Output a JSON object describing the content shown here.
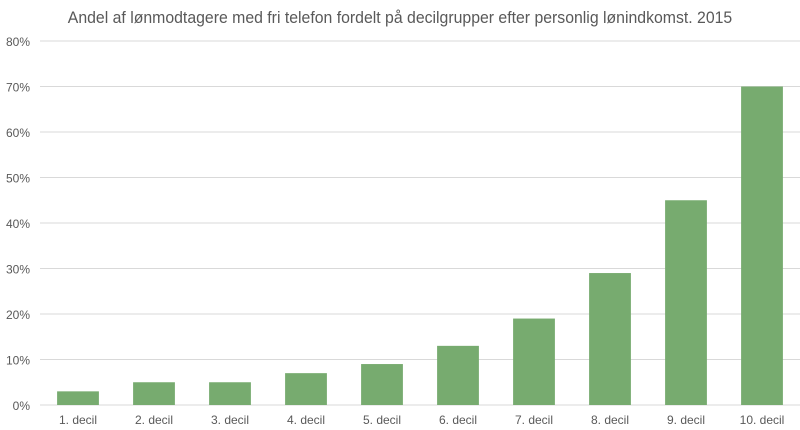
{
  "chart_data": {
    "type": "bar",
    "title": "Andel af lønmodtagere med fri telefon fordelt på decilgrupper efter personlig lønindkomst. 2015",
    "categories": [
      "1. decil",
      "2. decil",
      "3. decil",
      "4. decil",
      "5. decil",
      "6. decil",
      "7. decil",
      "8. decil",
      "9. decil",
      "10. decil"
    ],
    "values": [
      3,
      5,
      5,
      7,
      9,
      13,
      19,
      29,
      45,
      70
    ],
    "value_unit": "%",
    "xlabel": "",
    "ylabel": "",
    "ylim": [
      0,
      80
    ],
    "y_ticks": [
      "0%",
      "10%",
      "20%",
      "30%",
      "40%",
      "50%",
      "60%",
      "70%",
      "80%"
    ],
    "grid": true,
    "legend": "none",
    "bar_color": "#77AB6F",
    "grid_color": "#D9D9D9"
  }
}
